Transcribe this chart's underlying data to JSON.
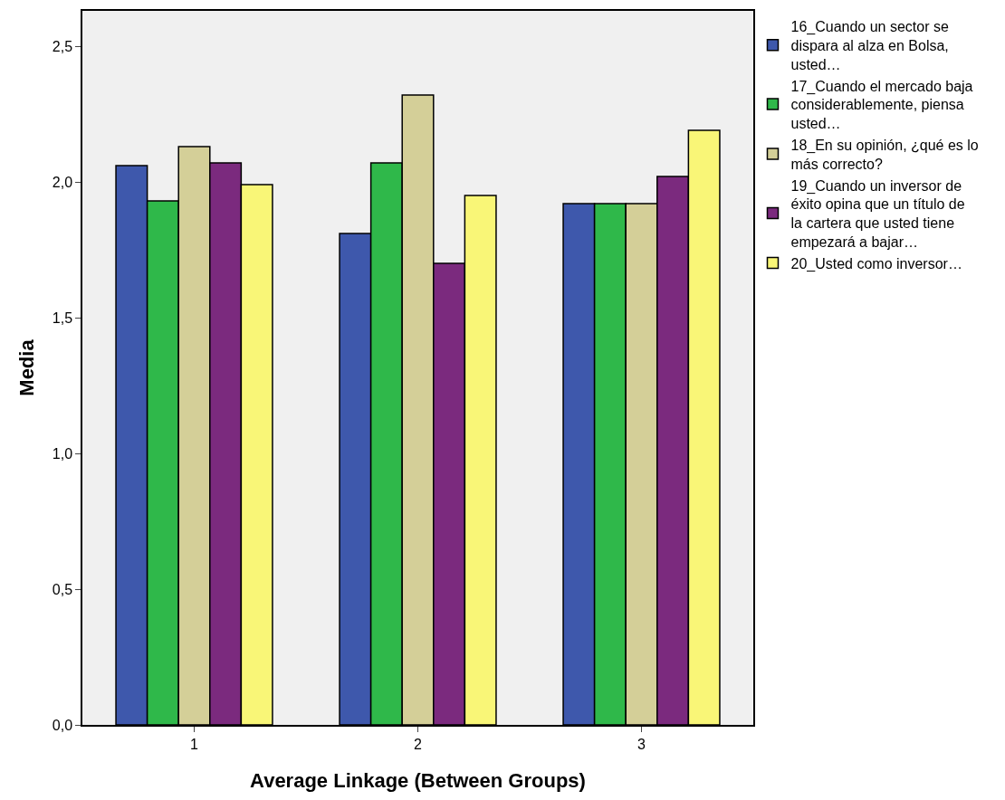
{
  "chart_data": {
    "type": "bar",
    "xlabel": "Average Linkage (Between Groups)",
    "ylabel": "Media",
    "categories": [
      "1",
      "2",
      "3"
    ],
    "series": [
      {
        "name": "16_Cuando un sector se\ndispara al alza en Bolsa,\nusted…",
        "color": "#3e58ac",
        "values": [
          2.06,
          1.81,
          1.92
        ]
      },
      {
        "name": "17_Cuando el mercado baja\nconsiderablemente, piensa\nusted…",
        "color": "#2fb84a",
        "values": [
          1.93,
          2.07,
          1.92
        ]
      },
      {
        "name": "18_En su opinión, ¿qué es lo\nmás correcto?",
        "color": "#d4cf98",
        "values": [
          2.13,
          2.32,
          1.92
        ]
      },
      {
        "name": "19_Cuando un inversor de\néxito opina que un título de\nla cartera que usted tiene\nempezará a bajar…",
        "color": "#7b2a7e",
        "values": [
          2.07,
          1.7,
          2.02
        ]
      },
      {
        "name": "20_Usted como inversor…",
        "color": "#f9f677",
        "values": [
          1.99,
          1.95,
          2.19
        ]
      }
    ],
    "ylim": [
      0,
      2.63
    ],
    "yticks": [
      {
        "value": 0,
        "label": "0,0"
      },
      {
        "value": 0.5,
        "label": "0,5"
      },
      {
        "value": 1,
        "label": "1,0"
      },
      {
        "value": 1.5,
        "label": "1,5"
      },
      {
        "value": 2,
        "label": "2,0"
      },
      {
        "value": 2.5,
        "label": "2,5"
      }
    ],
    "grid": false,
    "legend": "right"
  }
}
